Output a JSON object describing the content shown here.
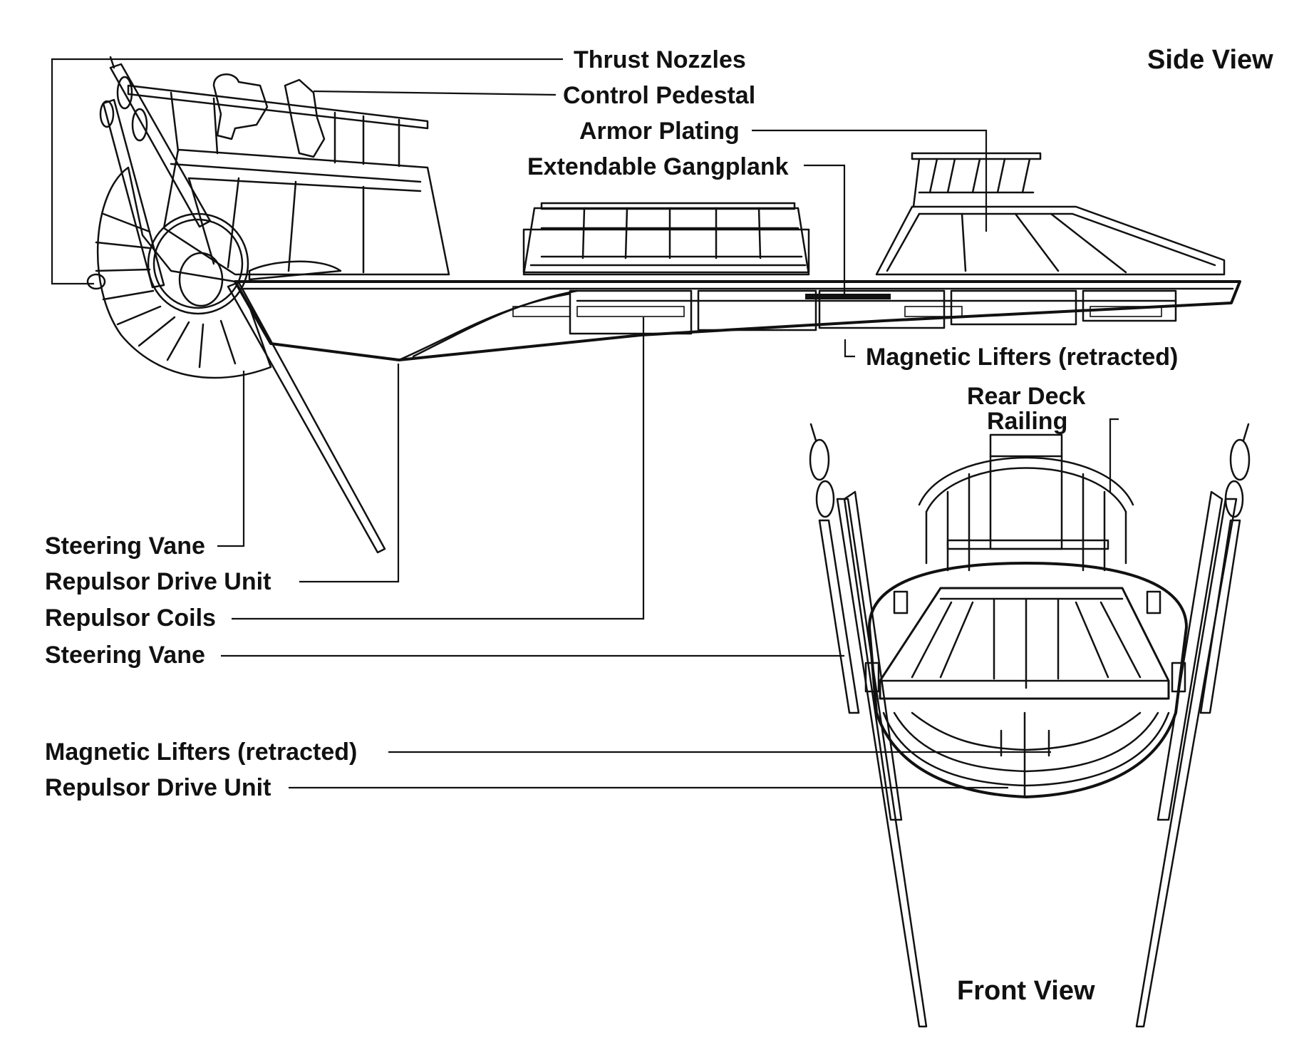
{
  "titles": {
    "side_view": "Side View",
    "front_view": "Front View"
  },
  "labels": {
    "thrust_nozzles": "Thrust Nozzles",
    "control_pedestal": "Control Pedestal",
    "armor_plating": "Armor Plating",
    "extendable_gangplank": "Extendable Gangplank",
    "magnetic_lifters_side": "Magnetic Lifters (retracted)",
    "rear_deck": "Rear Deck",
    "railing": "Railing",
    "steering_vane_1": "Steering Vane",
    "repulsor_drive_unit_1": "Repulsor Drive Unit",
    "repulsor_coils": "Repulsor Coils",
    "steering_vane_2": "Steering Vane",
    "magnetic_lifters_front": "Magnetic Lifters (retracted)",
    "repulsor_drive_unit_2": "Repulsor Drive Unit"
  },
  "colors": {
    "ink": "#111111",
    "paper": "#ffffff"
  }
}
